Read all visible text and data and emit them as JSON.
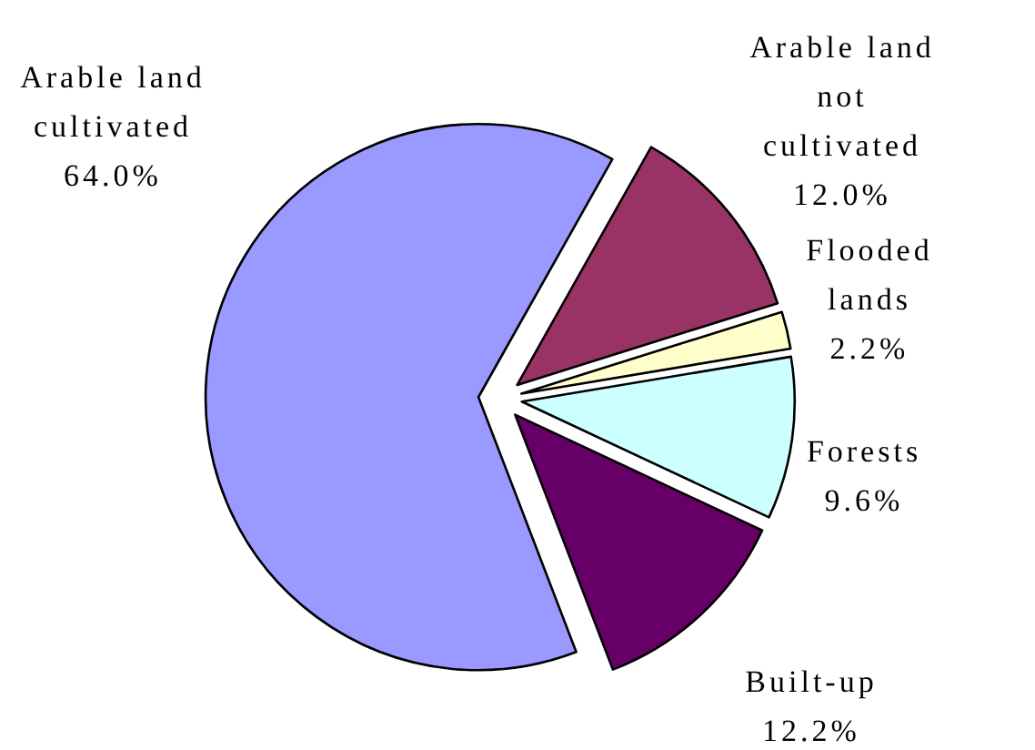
{
  "chart_data": {
    "type": "pie",
    "categories": [
      "Arable land cultivated",
      "Arable land not cultivated",
      "Flooded lands",
      "Forests",
      "Built-up"
    ],
    "values": [
      64.0,
      12.0,
      2.2,
      9.6,
      12.2
    ],
    "colors": [
      "#9999ff",
      "#993366",
      "#ffffcc",
      "#ccffff",
      "#660066"
    ],
    "value_labels": [
      "64.0%",
      "12.0%",
      "2.2%",
      "9.6%",
      "12.2%"
    ]
  }
}
